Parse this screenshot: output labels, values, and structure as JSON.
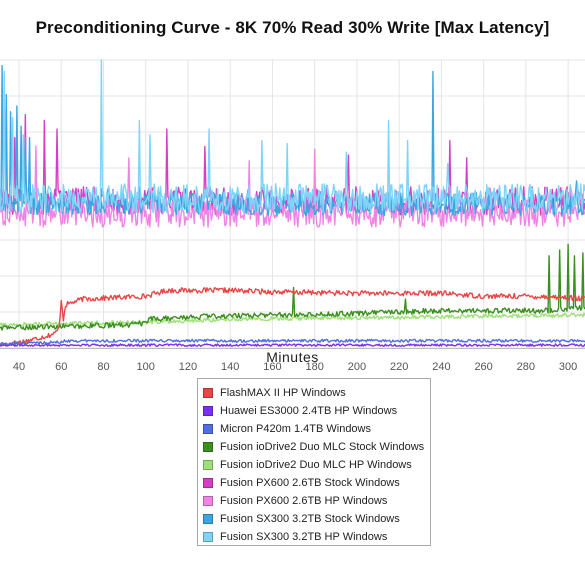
{
  "chart_data": {
    "type": "line",
    "title": "Preconditioning Curve - 8K 70% Read 30% Write [Max Latency]",
    "xlabel": "Minutes",
    "ylabel": "",
    "xlim": [
      31,
      308
    ],
    "ylim": [
      0,
      100
    ],
    "x_ticks": [
      40,
      60,
      80,
      100,
      120,
      140,
      160,
      180,
      200,
      220,
      240,
      260,
      280,
      300
    ],
    "grid": true,
    "legend_position": "bottom-center",
    "series": [
      {
        "name": "FlashMAX II HP Windows",
        "color": "#e84646",
        "base": 21,
        "noise": 0.9,
        "points": [
          [
            31,
            1
          ],
          [
            44,
            2.5
          ],
          [
            52,
            4
          ],
          [
            57,
            5
          ],
          [
            59,
            7
          ],
          [
            60,
            17
          ],
          [
            61,
            10
          ],
          [
            62,
            15
          ],
          [
            70,
            17
          ],
          [
            100,
            18
          ],
          [
            110,
            20
          ],
          [
            140,
            20
          ],
          [
            160,
            19.5
          ],
          [
            200,
            19
          ],
          [
            240,
            19
          ],
          [
            260,
            18
          ],
          [
            280,
            18
          ],
          [
            300,
            17.5
          ],
          [
            308,
            17
          ]
        ]
      },
      {
        "name": "Huawei ES3000 2.4TB HP Windows",
        "color": "#7b2ff2",
        "base": 1,
        "noise": 0.4,
        "points": [
          [
            31,
            1
          ],
          [
            308,
            1
          ]
        ]
      },
      {
        "name": "Micron P420m 1.4TB Windows",
        "color": "#4f6ee0",
        "base": 2,
        "noise": 0.5,
        "points": [
          [
            31,
            1.5
          ],
          [
            60,
            2
          ],
          [
            62,
            2.5
          ],
          [
            308,
            2.5
          ]
        ]
      },
      {
        "name": "Fusion ioDrive2 Duo MLC Stock Windows",
        "color": "#3a8f1e",
        "base": 10,
        "noise": 0.9,
        "points": [
          [
            31,
            7
          ],
          [
            90,
            8
          ],
          [
            100,
            8.5
          ],
          [
            102,
            10
          ],
          [
            130,
            11
          ],
          [
            160,
            11.5
          ],
          [
            200,
            12
          ],
          [
            240,
            13
          ],
          [
            290,
            13
          ],
          [
            308,
            14
          ]
        ],
        "spikes": [
          [
            170,
            21
          ],
          [
            223,
            17
          ],
          [
            291,
            32
          ],
          [
            296,
            34
          ],
          [
            300,
            36
          ],
          [
            303,
            32
          ],
          [
            307,
            33
          ]
        ]
      },
      {
        "name": "Fusion ioDrive2 Duo MLC HP Windows",
        "color": "#9fe07a",
        "base": 8,
        "noise": 0.7,
        "points": [
          [
            31,
            8
          ],
          [
            60,
            8.5
          ],
          [
            100,
            9
          ],
          [
            140,
            10
          ],
          [
            200,
            10.5
          ],
          [
            250,
            11
          ],
          [
            308,
            11.5
          ]
        ]
      },
      {
        "name": "Fusion PX600 2.6TB Stock Windows",
        "color": "#d63fc5",
        "base": 51,
        "noise": 5,
        "points": [
          [
            31,
            51
          ],
          [
            308,
            51
          ]
        ],
        "spikes": [
          [
            38,
            73
          ],
          [
            43,
            81
          ],
          [
            52,
            79
          ],
          [
            58,
            76
          ],
          [
            110,
            76
          ],
          [
            128,
            70
          ],
          [
            196,
            67
          ],
          [
            244,
            72
          ],
          [
            252,
            66
          ]
        ]
      },
      {
        "name": "Fusion PX600 2.6TB HP Windows",
        "color": "#ef84e5",
        "base": 47,
        "noise": 5,
        "points": [
          [
            31,
            47
          ],
          [
            308,
            47
          ]
        ],
        "spikes": [
          [
            34,
            75
          ],
          [
            48,
            70
          ],
          [
            92,
            66
          ],
          [
            149,
            65
          ],
          [
            180,
            69
          ]
        ]
      },
      {
        "name": "Fusion SX300 3.2TB Stock Windows",
        "color": "#3aa6e2",
        "base": 50,
        "noise": 4,
        "points": [
          [
            31,
            50
          ],
          [
            308,
            50
          ]
        ],
        "spikes": [
          [
            32,
            98
          ],
          [
            34,
            88
          ],
          [
            36,
            82
          ],
          [
            39,
            84
          ],
          [
            41,
            77
          ],
          [
            43,
            73
          ],
          [
            45,
            73
          ],
          [
            236,
            96
          ],
          [
            304,
            58
          ]
        ]
      },
      {
        "name": "Fusion SX300 3.2TB HP Windows",
        "color": "#7fd4f7",
        "base": 52,
        "noise": 5,
        "points": [
          [
            31,
            52
          ],
          [
            308,
            52
          ]
        ],
        "spikes": [
          [
            33,
            96
          ],
          [
            37,
            80
          ],
          [
            42,
            74
          ],
          [
            79,
            100
          ],
          [
            97,
            79
          ],
          [
            102,
            74
          ],
          [
            130,
            76
          ],
          [
            155,
            72
          ],
          [
            167,
            71
          ],
          [
            195,
            68
          ],
          [
            215,
            79
          ],
          [
            224,
            72
          ],
          [
            243,
            64
          ]
        ]
      }
    ]
  }
}
